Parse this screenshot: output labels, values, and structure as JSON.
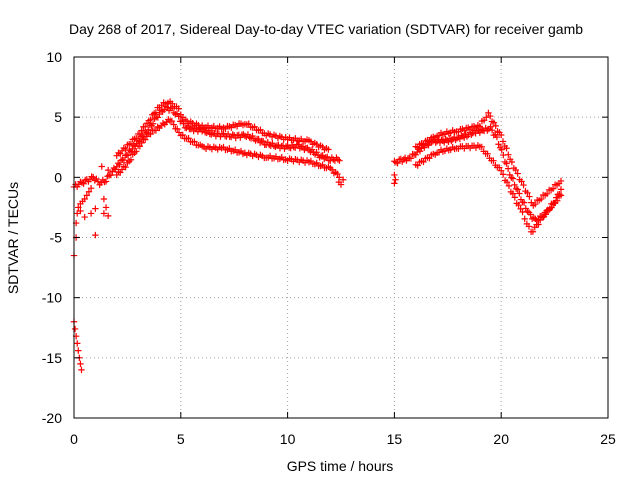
{
  "chart_data": {
    "type": "scatter",
    "title": "Day 268 of 2017, Sidereal Day-to-day VTEC variation (SDTVAR) for receiver gamb",
    "xlabel": "GPS time / hours",
    "ylabel": "SDTVAR / TECUs",
    "xlim": [
      0,
      25
    ],
    "ylim": [
      -20,
      10
    ],
    "x_ticks": [
      0,
      5,
      10,
      15,
      20,
      25
    ],
    "y_ticks": [
      -20,
      -15,
      -10,
      -5,
      0,
      5,
      10
    ],
    "x_tick_labels": [
      "0",
      "5",
      "10",
      "15",
      "20",
      "25"
    ],
    "y_tick_labels": [
      "-20",
      "-15",
      "-10",
      "-5",
      "0",
      "5",
      "10"
    ],
    "grid": true,
    "marker": "plus",
    "color": "#ff0000",
    "series": [
      {
        "name": "SDTVAR",
        "trend": [
          [
            0.0,
            -0.8
          ],
          [
            0.3,
            -0.5
          ],
          [
            0.6,
            -0.3
          ],
          [
            0.9,
            0.0
          ],
          [
            1.2,
            -0.5
          ],
          [
            1.5,
            -0.2
          ],
          [
            1.8,
            0.5
          ],
          [
            2.2,
            1.3
          ],
          [
            2.6,
            2.1
          ],
          [
            3.0,
            3.0
          ],
          [
            3.4,
            3.8
          ],
          [
            3.7,
            4.6
          ],
          [
            4.0,
            5.3
          ],
          [
            4.3,
            5.8
          ],
          [
            4.6,
            5.6
          ],
          [
            4.9,
            5.0
          ],
          [
            5.2,
            4.2
          ],
          [
            5.6,
            4.0
          ],
          [
            6.0,
            3.9
          ],
          [
            6.5,
            3.6
          ],
          [
            7.0,
            3.5
          ],
          [
            7.5,
            3.4
          ],
          [
            8.0,
            3.5
          ],
          [
            8.5,
            3.2
          ],
          [
            9.0,
            2.8
          ],
          [
            9.5,
            2.6
          ],
          [
            10.0,
            2.5
          ],
          [
            10.5,
            2.6
          ],
          [
            11.0,
            2.3
          ],
          [
            11.5,
            1.8
          ],
          [
            12.0,
            1.5
          ],
          [
            12.5,
            1.5
          ],
          [
            15.0,
            1.2
          ],
          [
            15.3,
            1.4
          ],
          [
            15.7,
            1.6
          ],
          [
            16.0,
            2.0
          ],
          [
            16.4,
            2.6
          ],
          [
            16.8,
            3.0
          ],
          [
            17.2,
            3.0
          ],
          [
            17.6,
            3.1
          ],
          [
            18.0,
            3.3
          ],
          [
            18.4,
            3.5
          ],
          [
            18.8,
            3.8
          ],
          [
            19.2,
            3.9
          ],
          [
            19.5,
            4.1
          ],
          [
            19.8,
            3.2
          ],
          [
            20.1,
            1.8
          ],
          [
            20.4,
            0.3
          ],
          [
            20.7,
            -0.8
          ],
          [
            21.0,
            -2.0
          ],
          [
            21.3,
            -3.0
          ],
          [
            21.6,
            -3.6
          ],
          [
            21.9,
            -3.3
          ],
          [
            22.2,
            -2.7
          ],
          [
            22.5,
            -2.0
          ],
          [
            22.8,
            -1.0
          ]
        ],
        "upper_band": [
          [
            2.0,
            1.8
          ],
          [
            2.5,
            2.6
          ],
          [
            3.0,
            3.5
          ],
          [
            3.5,
            4.7
          ],
          [
            4.0,
            5.9
          ],
          [
            4.4,
            6.3
          ],
          [
            4.8,
            5.9
          ],
          [
            5.2,
            4.7
          ],
          [
            6.0,
            4.2
          ],
          [
            7.0,
            4.1
          ],
          [
            8.0,
            4.5
          ],
          [
            9.0,
            3.6
          ],
          [
            10.0,
            3.2
          ],
          [
            11.0,
            3.0
          ],
          [
            12.0,
            2.2
          ],
          [
            16.0,
            2.5
          ],
          [
            17.0,
            3.5
          ],
          [
            18.0,
            3.9
          ],
          [
            19.0,
            4.3
          ],
          [
            19.4,
            5.3
          ],
          [
            20.0,
            3.4
          ],
          [
            20.5,
            1.2
          ],
          [
            21.5,
            -2.3
          ],
          [
            22.8,
            -0.3
          ]
        ],
        "lower_band": [
          [
            2.0,
            0.2
          ],
          [
            2.5,
            1.1
          ],
          [
            3.0,
            2.5
          ],
          [
            3.5,
            3.6
          ],
          [
            4.0,
            4.2
          ],
          [
            4.5,
            4.8
          ],
          [
            5.0,
            3.5
          ],
          [
            6.0,
            2.5
          ],
          [
            7.0,
            2.4
          ],
          [
            8.0,
            2.0
          ],
          [
            9.0,
            1.7
          ],
          [
            10.0,
            1.5
          ],
          [
            11.0,
            1.3
          ],
          [
            12.0,
            0.7
          ],
          [
            12.5,
            0.0
          ],
          [
            16.0,
            1.0
          ],
          [
            17.0,
            2.1
          ],
          [
            18.0,
            2.5
          ],
          [
            19.0,
            2.6
          ],
          [
            20.0,
            0.5
          ],
          [
            21.0,
            -3.0
          ],
          [
            21.4,
            -4.6
          ],
          [
            22.0,
            -3.2
          ],
          [
            22.8,
            -1.5
          ]
        ],
        "isolated_points": [
          [
            0.0,
            -6.5
          ],
          [
            0.1,
            -5.0
          ],
          [
            0.1,
            -3.8
          ],
          [
            0.15,
            -3.0
          ],
          [
            0.2,
            -2.5
          ],
          [
            0.3,
            -2.2
          ],
          [
            0.4,
            -2.0
          ],
          [
            0.5,
            -1.8
          ],
          [
            0.6,
            -1.5
          ],
          [
            0.7,
            -1.2
          ],
          [
            0.8,
            -0.9
          ],
          [
            0.3,
            -2.8
          ],
          [
            0.5,
            -3.3
          ],
          [
            0.8,
            -3.0
          ],
          [
            1.0,
            -2.6
          ],
          [
            1.4,
            -3.0
          ],
          [
            1.6,
            -3.2
          ],
          [
            1.5,
            -2.5
          ],
          [
            1.3,
            0.9
          ],
          [
            1.6,
            0.6
          ],
          [
            1.0,
            -4.8
          ],
          [
            1.4,
            -1.8
          ],
          [
            0.0,
            -12.0
          ],
          [
            0.05,
            -12.6
          ],
          [
            0.1,
            -13.2
          ],
          [
            0.15,
            -13.8
          ],
          [
            0.2,
            -14.4
          ],
          [
            0.25,
            -15.0
          ],
          [
            0.3,
            -15.5
          ],
          [
            0.35,
            -16.0
          ],
          [
            12.4,
            -0.4
          ],
          [
            12.5,
            -0.6
          ],
          [
            12.6,
            -0.2
          ],
          [
            15.0,
            -0.5
          ],
          [
            15.0,
            0.2
          ],
          [
            15.05,
            -0.2
          ]
        ]
      }
    ]
  }
}
